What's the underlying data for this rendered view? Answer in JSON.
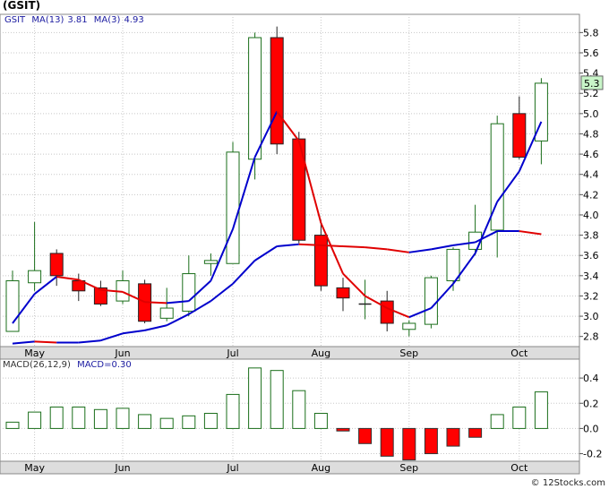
{
  "ticker_title": "(GSIT)",
  "price_legend": {
    "symbol": "GSIT",
    "ma13_label": "MA(13)",
    "ma13_value": "3.81",
    "ma3_label": "MA(3)",
    "ma3_value": "4.93"
  },
  "macd_legend": {
    "label": "MACD(26,12,9)",
    "value_label": "MACD=0.30"
  },
  "credit": "© 12Stocks.com",
  "colors": {
    "up_candle_border": "#1a6e1a",
    "down_candle": "#ff0000",
    "ma_fast": "#0000cc",
    "ma_slow": "#e00000",
    "macd_bar": "#1a6e1a",
    "macd_neg": "#ff0000",
    "last_price_bg": "#c8f5c8"
  },
  "chart_data": [
    {
      "type": "candlestick",
      "name": "price",
      "x": [
        "w1",
        "w2",
        "w3",
        "w4",
        "w5",
        "w6",
        "w7",
        "w8",
        "w9",
        "w10",
        "w11",
        "w12",
        "w13",
        "w14",
        "w15",
        "w16",
        "w17",
        "w18",
        "w19",
        "w20",
        "w21",
        "w22",
        "w23",
        "w24",
        "w25"
      ],
      "month_labels": [
        {
          "label": "May",
          "at": "w2"
        },
        {
          "label": "Jun",
          "at": "w6"
        },
        {
          "label": "Jul",
          "at": "w11"
        },
        {
          "label": "Aug",
          "at": "w15"
        },
        {
          "label": "Sep",
          "at": "w19"
        },
        {
          "label": "Oct",
          "at": "w24"
        }
      ],
      "open": [
        2.85,
        3.33,
        3.62,
        3.35,
        3.28,
        3.15,
        3.32,
        2.98,
        3.05,
        3.52,
        3.52,
        4.55,
        5.75,
        4.75,
        3.8,
        3.28,
        3.12,
        3.15,
        2.87,
        2.92,
        3.35,
        3.66,
        3.85,
        5.0,
        4.73
      ],
      "high": [
        3.45,
        3.93,
        3.66,
        3.42,
        3.35,
        3.45,
        3.36,
        3.28,
        3.6,
        3.62,
        4.72,
        5.8,
        5.86,
        4.82,
        3.95,
        3.38,
        3.36,
        3.25,
        2.96,
        3.4,
        3.68,
        4.1,
        4.98,
        5.17,
        5.35
      ],
      "low": [
        2.85,
        3.25,
        3.3,
        3.15,
        3.1,
        3.12,
        2.93,
        2.95,
        3.0,
        3.4,
        3.52,
        4.35,
        4.6,
        3.72,
        3.25,
        3.05,
        2.97,
        2.85,
        2.8,
        2.88,
        3.25,
        3.6,
        3.58,
        4.55,
        4.5
      ],
      "close": [
        3.35,
        3.45,
        3.4,
        3.25,
        3.12,
        3.35,
        2.95,
        3.08,
        3.42,
        3.55,
        4.62,
        5.75,
        4.7,
        3.75,
        3.3,
        3.18,
        3.12,
        2.93,
        2.93,
        3.38,
        3.66,
        3.83,
        4.9,
        4.57,
        5.3
      ],
      "ma_fast": {
        "label": "MA(3)",
        "values": [
          2.93,
          3.22,
          3.39,
          3.36,
          3.26,
          3.24,
          3.14,
          3.13,
          3.15,
          3.35,
          3.86,
          4.57,
          5.02,
          4.73,
          3.92,
          3.42,
          3.2,
          3.08,
          2.99,
          3.08,
          3.32,
          3.62,
          4.13,
          4.43,
          4.92
        ]
      },
      "ma_slow": {
        "label": "MA(13)",
        "values": [
          2.73,
          2.75,
          2.74,
          2.74,
          2.76,
          2.83,
          2.86,
          2.91,
          3.02,
          3.15,
          3.32,
          3.55,
          3.69,
          3.71,
          3.7,
          3.69,
          3.68,
          3.66,
          3.63,
          3.66,
          3.7,
          3.73,
          3.84,
          3.84,
          3.81
        ]
      },
      "last_price": "5.3",
      "ylim": [
        2.7,
        5.98
      ],
      "y_ticks": [
        2.8,
        3.0,
        3.2,
        3.4,
        3.6,
        3.8,
        4.0,
        4.2,
        4.4,
        4.6,
        4.8,
        5.0,
        5.2,
        5.4,
        5.6,
        5.8
      ],
      "y_tick_labels": [
        "2.8",
        "3.0",
        "3.2",
        "3.4",
        "3.6",
        "3.8",
        "4.0",
        "4.2",
        "4.4",
        "4.6",
        "4.8",
        "5.0",
        "5.2",
        "5.4",
        "5.6",
        "5.8"
      ]
    },
    {
      "type": "bar",
      "name": "macd",
      "x": [
        "w1",
        "w2",
        "w3",
        "w4",
        "w5",
        "w6",
        "w7",
        "w8",
        "w9",
        "w10",
        "w11",
        "w12",
        "w13",
        "w14",
        "w15",
        "w16",
        "w17",
        "w18",
        "w19",
        "w20",
        "w21",
        "w22",
        "w23",
        "w24",
        "w25"
      ],
      "values": [
        0.05,
        0.13,
        0.17,
        0.17,
        0.15,
        0.16,
        0.11,
        0.08,
        0.1,
        0.12,
        0.27,
        0.48,
        0.46,
        0.3,
        0.12,
        -0.02,
        -0.12,
        -0.22,
        -0.25,
        -0.2,
        -0.14,
        -0.07,
        0.11,
        0.17,
        0.29
      ],
      "ylim": [
        -0.26,
        0.55
      ],
      "y_ticks": [
        -0.2,
        0.0,
        0.2,
        0.4
      ],
      "y_tick_labels": [
        "-0.2",
        "0.0",
        "0.2",
        "0.4"
      ],
      "month_labels": [
        {
          "label": "May",
          "at": "w2"
        },
        {
          "label": "Jun",
          "at": "w6"
        },
        {
          "label": "Jul",
          "at": "w11"
        },
        {
          "label": "Aug",
          "at": "w15"
        },
        {
          "label": "Sep",
          "at": "w19"
        },
        {
          "label": "Oct",
          "at": "w24"
        }
      ]
    }
  ]
}
